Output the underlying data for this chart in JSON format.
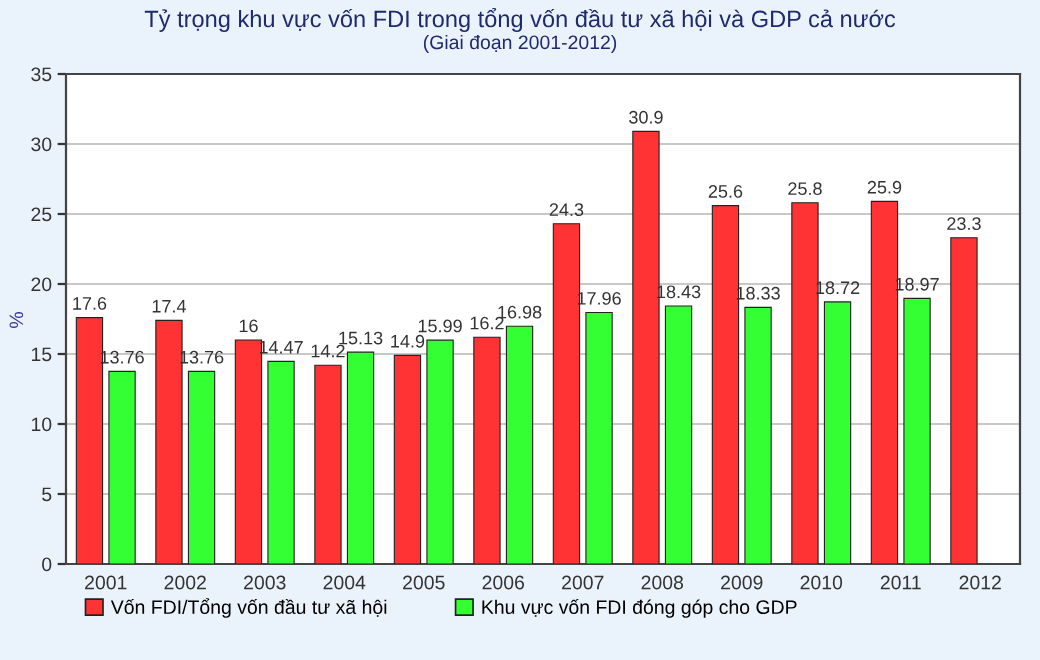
{
  "chart_data": {
    "type": "bar",
    "title": "Tỷ trọng khu vực vốn FDI trong tổng vốn đầu tư xã hội và GDP cả nước",
    "subtitle": "(Giai đoạn 2001-2012)",
    "ylabel": "%",
    "categories": [
      "2001",
      "2002",
      "2003",
      "2004",
      "2005",
      "2006",
      "2007",
      "2008",
      "2009",
      "2010",
      "2011",
      "2012"
    ],
    "series": [
      {
        "name": "Vốn FDI/Tổng vốn đầu tư xã hội",
        "color": "#ff3333",
        "values": [
          17.6,
          17.4,
          16,
          14.2,
          14.9,
          16.2,
          24.3,
          30.9,
          25.6,
          25.8,
          25.9,
          23.3
        ]
      },
      {
        "name": "Khu vực vốn FDI đóng góp cho GDP",
        "color": "#33ff33",
        "values": [
          13.76,
          13.76,
          14.47,
          15.13,
          15.99,
          16.98,
          17.96,
          18.43,
          18.33,
          18.72,
          18.97,
          null
        ]
      }
    ],
    "ylim": [
      0,
      35
    ],
    "yticks": [
      0,
      5,
      10,
      15,
      20,
      25,
      30,
      35
    ],
    "grid": "y",
    "legend": "bottom",
    "data_labels": true
  }
}
